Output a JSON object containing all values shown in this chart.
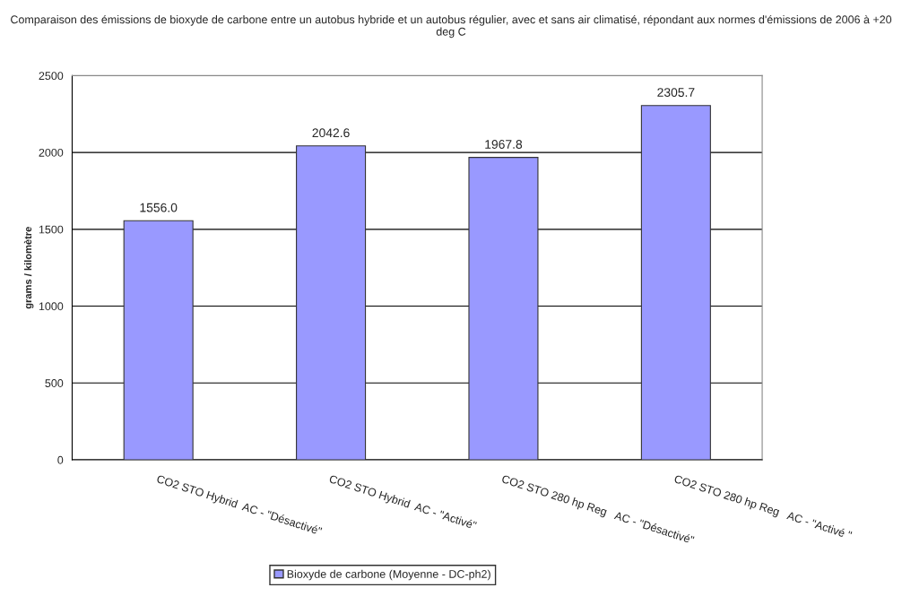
{
  "chart_data": {
    "type": "bar",
    "title": "Comparaison des émissions de bioxyde de carbone entre un autobus hybride et un autobus régulier, avec et sans air climatisé, répondant aux normes d'émissions de 2006 à +20 deg C",
    "ylabel": "grams / kilomètre",
    "categories": [
      "CO2 STO Hybrid  AC - \"Désactivé\"",
      "CO2 STO Hybrid  AC - \"Activé\"",
      "CO2 STO 280 hp Reg   AC - \"Désactivé\"",
      "CO2 STO 280 hp Reg   AC - \"Activé \""
    ],
    "series": [
      {
        "name": "Bioxyde de carbone (Moyenne - DC-ph2)",
        "color": "#9999ff",
        "values": [
          1556.0,
          2042.6,
          1967.8,
          2305.7
        ]
      }
    ],
    "value_labels": [
      "1556.0",
      "2042.6",
      "1967.8",
      "2305.7"
    ],
    "ylim": [
      0,
      2500
    ],
    "yticks": [
      0,
      500,
      1000,
      1500,
      2000,
      2500
    ],
    "grid": "y",
    "legend": "bottom"
  }
}
